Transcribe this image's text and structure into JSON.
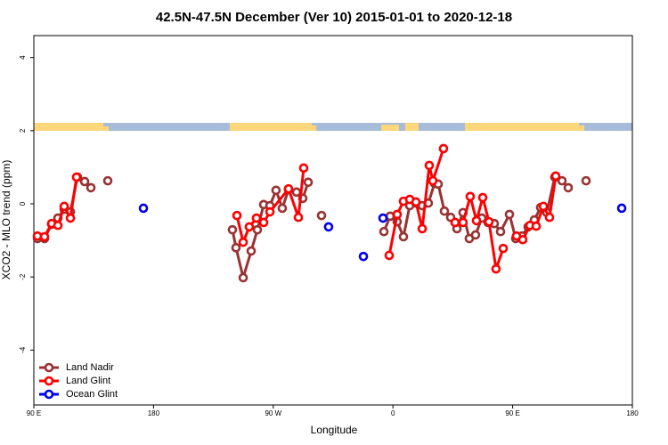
{
  "chart_data": {
    "type": "line",
    "title": "42.5N-47.5N December (Ver 10)   2015-01-01 to 2020-12-18",
    "x_label": "Longitude",
    "y_label": "XCO2 - MLO trend (ppm)",
    "xlim": [
      90,
      540
    ],
    "ylim": [
      -5.5,
      4.6
    ],
    "xticks": [
      {
        "value": 90,
        "label": "90 E"
      },
      180,
      {
        "value": 270,
        "label": "90 W"
      },
      {
        "value": 360,
        "label": "0"
      },
      {
        "value": 450,
        "label": "90 E"
      },
      {
        "value": 540,
        "label": "180"
      }
    ],
    "yticks": [
      -4,
      -2,
      0,
      2,
      4
    ],
    "legend": "bottom-left",
    "series": [
      {
        "name": "Land Nadir",
        "color": "#993333",
        "x": [
          92.7,
          98.0,
          103.4,
          108.1,
          112.8,
          117.5,
          122.8,
          128.2,
          132.9,
          null,
          145.6,
          null,
          239.3,
          242.0,
          247.4,
          253.4,
          258.1,
          262.8,
          267.5,
          272.1,
          276.8,
          281.5,
          287.5,
          292.2,
          296.3,
          null,
          306.3,
          null,
          353.2,
          357.9,
          363.2,
          367.9,
          372.6,
          377.3,
          382.0,
          386.6,
          391.3,
          394.0,
          398.7,
          403.4,
          408.1,
          412.7,
          417.4,
          422.1,
          426.8,
          431.5,
          436.2,
          440.9,
          447.6,
          452.3,
          457.0,
          461.6,
          466.3,
          471.0,
          475.7,
          481.7,
          487.1,
          491.8,
          null,
          505.2
        ],
        "values": [
          -0.95,
          -0.95,
          -0.56,
          -0.39,
          -0.15,
          -0.22,
          0.73,
          0.61,
          0.44,
          null,
          0.63,
          null,
          -0.71,
          -1.2,
          -2.02,
          -1.29,
          -0.71,
          -0.02,
          -0.05,
          0.37,
          -0.12,
          0.39,
          0.32,
          0.15,
          0.59,
          null,
          -0.32,
          null,
          -0.76,
          -0.34,
          -0.49,
          -0.9,
          -0.05,
          0.02,
          -0.05,
          0.02,
          0.56,
          0.54,
          -0.2,
          -0.37,
          -0.68,
          -0.24,
          -0.95,
          -0.85,
          -0.39,
          -0.51,
          -0.54,
          -0.76,
          -0.29,
          -0.95,
          -0.88,
          -0.63,
          -0.44,
          -0.1,
          -0.24,
          0.73,
          0.63,
          0.44,
          null,
          0.63
        ]
      },
      {
        "name": "Land Glint",
        "color": "#ff0000",
        "x": [
          92.7,
          98.0,
          103.4,
          108.1,
          112.8,
          117.5,
          122.1,
          null,
          242.7,
          247.4,
          252.0,
          257.4,
          262.8,
          267.5,
          281.5,
          288.9,
          292.9,
          null,
          357.2,
          363.2,
          367.9,
          372.6,
          377.3,
          382.0,
          387.3,
          390.0,
          398.0,
          null,
          406.7,
          412.7,
          418.1,
          422.8,
          427.5,
          432.2,
          437.5,
          442.9,
          null,
          452.9,
          457.6,
          463.0,
          467.7,
          473.1,
          477.7,
          482.4
        ],
        "values": [
          -0.88,
          -0.9,
          -0.54,
          -0.59,
          -0.07,
          -0.39,
          0.73,
          null,
          -0.32,
          -1.05,
          -0.63,
          -0.39,
          -0.51,
          -0.22,
          0.41,
          -0.37,
          0.98,
          null,
          -1.41,
          -0.29,
          0.07,
          0.12,
          0.05,
          -0.68,
          1.05,
          0.63,
          1.51,
          null,
          -0.51,
          -0.51,
          0.2,
          -0.46,
          0.17,
          -0.49,
          -1.78,
          -1.22,
          null,
          -0.88,
          -0.98,
          -0.59,
          -0.61,
          -0.07,
          -0.37,
          0.76
        ]
      },
      {
        "name": "Ocean Glint",
        "color": "#0000ee",
        "x": [
          172.4,
          null,
          311.6,
          null,
          337.8,
          null,
          352.5,
          null,
          532.0
        ],
        "values": [
          -0.12,
          null,
          -0.63,
          null,
          -1.44,
          null,
          -0.39,
          null,
          -0.12
        ]
      }
    ]
  }
}
